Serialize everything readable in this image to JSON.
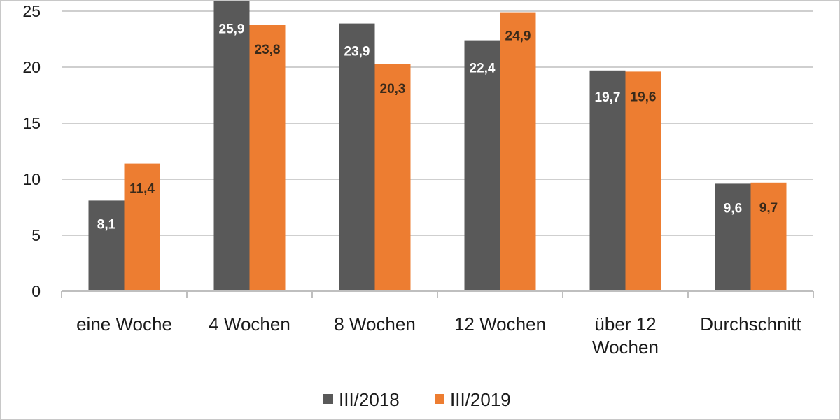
{
  "chart_data": {
    "type": "bar",
    "categories": [
      "eine Woche",
      "4 Wochen",
      "8 Wochen",
      "12 Wochen",
      "über 12 Wochen",
      "Durchschnitt"
    ],
    "category_lines": [
      [
        "eine Woche"
      ],
      [
        "4 Wochen"
      ],
      [
        "8 Wochen"
      ],
      [
        "12 Wochen"
      ],
      [
        "über 12",
        "Wochen"
      ],
      [
        "Durchschnitt"
      ]
    ],
    "series": [
      {
        "name": "III/2018",
        "values": [
          8.1,
          25.9,
          23.9,
          22.4,
          19.7,
          9.6
        ],
        "labels": [
          "8,1",
          "25,9",
          "23,9",
          "22,4",
          "19,7",
          "9,6"
        ],
        "color": "#595959"
      },
      {
        "name": "III/2019",
        "values": [
          11.4,
          23.8,
          20.3,
          24.9,
          19.6,
          9.7
        ],
        "labels": [
          "11,4",
          "23,8",
          "20,3",
          "24,9",
          "19,6",
          "9,7"
        ],
        "color": "#ed7d31"
      }
    ],
    "yticks": [
      "0",
      "5",
      "10",
      "15",
      "20",
      "25"
    ],
    "ylim": [
      0,
      26
    ],
    "grid": true,
    "legend_position": "bottom",
    "title": "",
    "xlabel": "",
    "ylabel": "",
    "gridline_color": "#bfbfbf"
  }
}
